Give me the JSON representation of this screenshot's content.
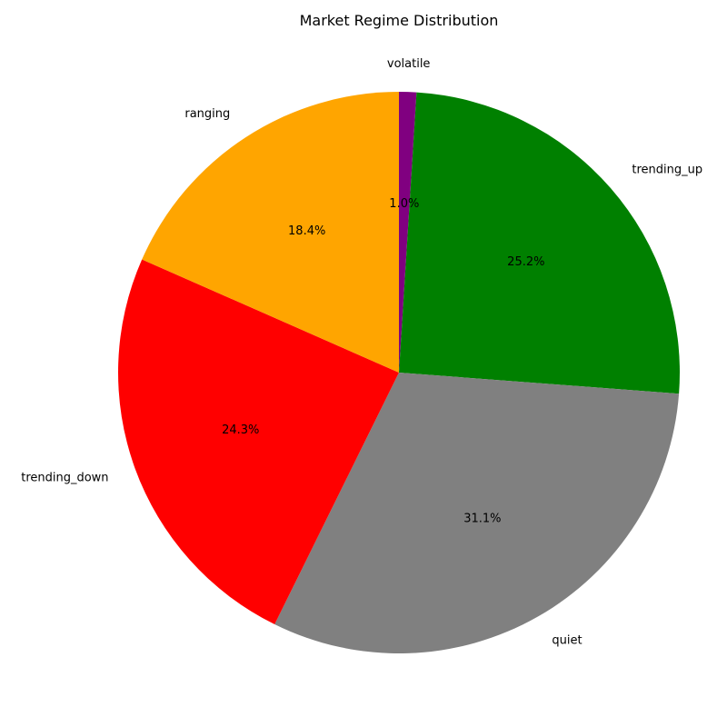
{
  "chart_data": {
    "type": "pie",
    "title": "Market Regime Distribution",
    "slices": [
      {
        "label": "volatile",
        "value": 1.0,
        "pct_label": "1.0%",
        "color": "#800080"
      },
      {
        "label": "trending_up",
        "value": 25.2,
        "pct_label": "25.2%",
        "color": "#008000"
      },
      {
        "label": "quiet",
        "value": 31.1,
        "pct_label": "31.1%",
        "color": "#808080"
      },
      {
        "label": "trending_down",
        "value": 24.3,
        "pct_label": "24.3%",
        "color": "#ff0000"
      },
      {
        "label": "ranging",
        "value": 18.4,
        "pct_label": "18.4%",
        "color": "#ffa500"
      }
    ],
    "start_angle_deg": 90,
    "direction": "clockwise"
  }
}
